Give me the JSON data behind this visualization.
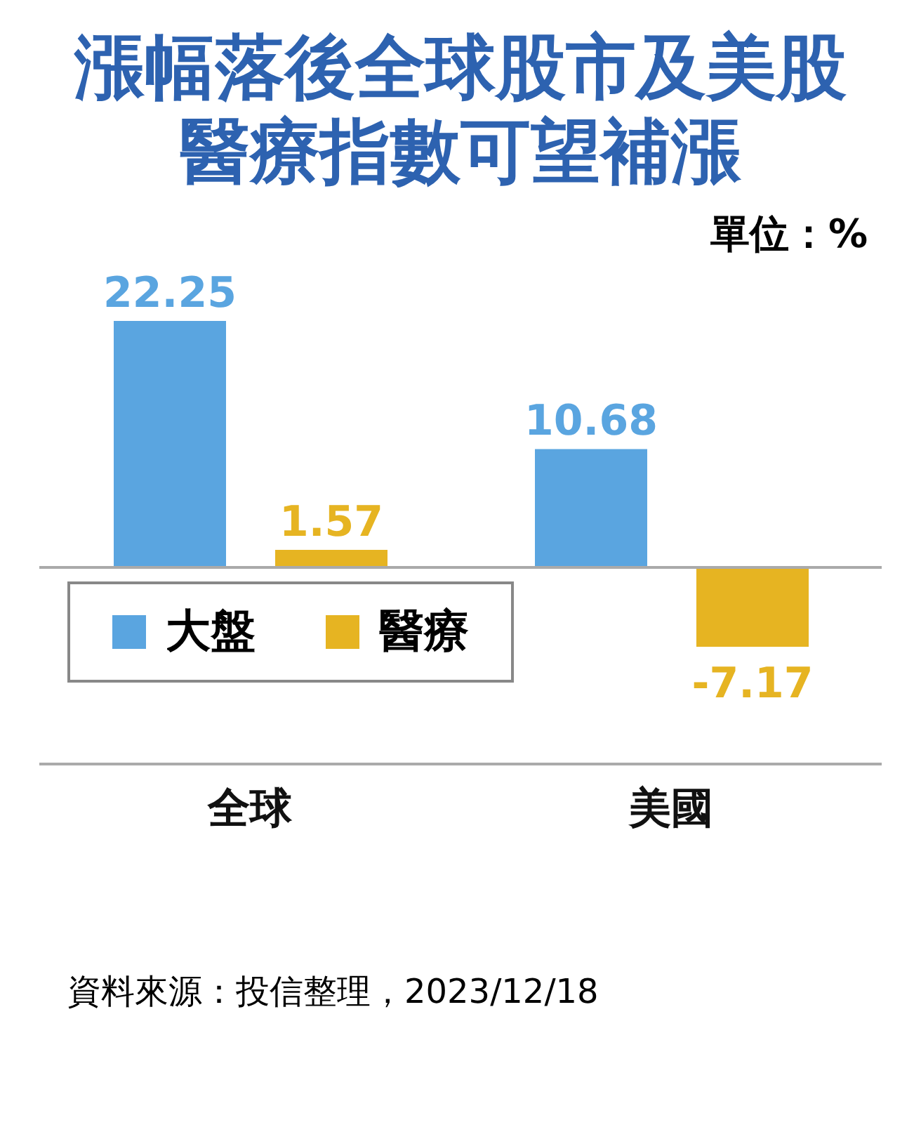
{
  "chart_data": {
    "type": "bar",
    "title": "漲幅落後全球股市及美股醫療指數可望補漲",
    "categories": [
      "全球",
      "美國"
    ],
    "series": [
      {
        "name": "大盤",
        "color": "#5aa5e0",
        "values": [
          22.25,
          10.68
        ]
      },
      {
        "name": "醫療",
        "color": "#e6b422",
        "values": [
          1.57,
          -7.17
        ]
      }
    ],
    "data_labels": true,
    "legend": "bottom left",
    "grid": false,
    "annotations": [
      "單位：%",
      "資料來源：投信整理，2023/12/18"
    ]
  }
}
